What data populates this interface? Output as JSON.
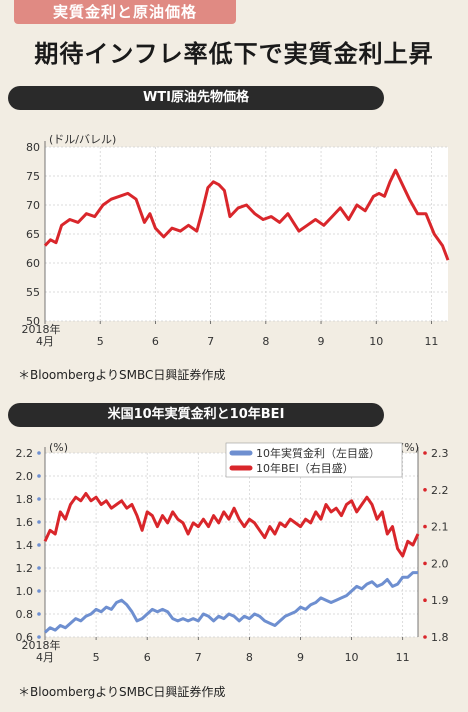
{
  "header": {
    "tag": "実質金利と原油価格",
    "title": "期待インフレ率低下で実質金利上昇"
  },
  "chart_data": [
    {
      "type": "line",
      "title": "WTI原油先物価格",
      "ylabel": "(ドル/バレル)",
      "ylim": [
        50,
        80
      ],
      "yticks": [
        50,
        55,
        60,
        65,
        70,
        75,
        80
      ],
      "x_ticks": [
        "2018年\n4月",
        "5",
        "6",
        "7",
        "8",
        "9",
        "10",
        "11"
      ],
      "x_range": [
        4.0,
        11.3
      ],
      "grid": true,
      "series": [
        {
          "color": "#d9262b",
          "x": [
            4.0,
            4.1,
            4.2,
            4.3,
            4.45,
            4.6,
            4.75,
            4.9,
            5.05,
            5.2,
            5.35,
            5.5,
            5.65,
            5.8,
            5.9,
            6.0,
            6.15,
            6.3,
            6.45,
            6.6,
            6.75,
            6.85,
            6.95,
            7.05,
            7.15,
            7.25,
            7.35,
            7.5,
            7.65,
            7.8,
            7.95,
            8.1,
            8.25,
            8.4,
            8.5,
            8.6,
            8.75,
            8.9,
            9.05,
            9.2,
            9.35,
            9.5,
            9.65,
            9.8,
            9.95,
            10.05,
            10.15,
            10.25,
            10.35,
            10.45,
            10.6,
            10.75,
            10.9,
            11.05,
            11.2,
            11.3
          ],
          "values": [
            63,
            64,
            63.5,
            66.5,
            67.5,
            67,
            68.5,
            68,
            70,
            71,
            71.5,
            72,
            71,
            67,
            68.5,
            66,
            64.5,
            66,
            65.5,
            66.5,
            65.5,
            69,
            73,
            74,
            73.5,
            72.5,
            68,
            69.5,
            70,
            68.5,
            67.5,
            68,
            67,
            68.5,
            67,
            65.5,
            66.5,
            67.5,
            66.5,
            68,
            69.5,
            67.5,
            70,
            69,
            71.5,
            72,
            71.5,
            74,
            76,
            74,
            71,
            68.5,
            68.5,
            65,
            63,
            60.5
          ]
        }
      ]
    },
    {
      "type": "line",
      "title": "米国10年実質金利と10年BEI",
      "ylabel_left": "(%)",
      "ylabel_right": "(%)",
      "ylim_left": [
        0.6,
        2.2
      ],
      "yticks_left": [
        "0.6",
        "0.8",
        "1.0",
        "1.2",
        "1.4",
        "1.6",
        "1.8",
        "2.0",
        "2.2"
      ],
      "ylim_right": [
        1.8,
        2.3
      ],
      "yticks_right": [
        "1.8",
        "1.9",
        "2.0",
        "2.1",
        "2.2",
        "2.3"
      ],
      "x_ticks": [
        "2018年\n4月",
        "5",
        "6",
        "7",
        "8",
        "9",
        "10",
        "11"
      ],
      "x_range": [
        4.0,
        11.3
      ],
      "legend": "top-right",
      "grid": true,
      "series": [
        {
          "name": "10年実質金利（左目盛）",
          "axis": "left",
          "color": "#6e8fd0",
          "x": [
            4.0,
            4.1,
            4.2,
            4.3,
            4.4,
            4.5,
            4.6,
            4.7,
            4.8,
            4.9,
            5.0,
            5.1,
            5.2,
            5.3,
            5.4,
            5.5,
            5.6,
            5.7,
            5.8,
            5.9,
            6.0,
            6.1,
            6.2,
            6.3,
            6.4,
            6.5,
            6.6,
            6.7,
            6.8,
            6.9,
            7.0,
            7.1,
            7.2,
            7.3,
            7.4,
            7.5,
            7.6,
            7.7,
            7.8,
            7.9,
            8.0,
            8.1,
            8.2,
            8.3,
            8.4,
            8.5,
            8.6,
            8.7,
            8.8,
            8.9,
            9.0,
            9.1,
            9.2,
            9.3,
            9.4,
            9.5,
            9.6,
            9.7,
            9.8,
            9.9,
            10.0,
            10.1,
            10.2,
            10.3,
            10.4,
            10.5,
            10.6,
            10.7,
            10.8,
            10.9,
            11.0,
            11.1,
            11.2,
            11.3
          ],
          "values": [
            0.64,
            0.68,
            0.66,
            0.7,
            0.68,
            0.72,
            0.76,
            0.74,
            0.78,
            0.8,
            0.84,
            0.82,
            0.86,
            0.84,
            0.9,
            0.92,
            0.88,
            0.82,
            0.74,
            0.76,
            0.8,
            0.84,
            0.82,
            0.84,
            0.82,
            0.76,
            0.74,
            0.76,
            0.74,
            0.76,
            0.74,
            0.8,
            0.78,
            0.74,
            0.78,
            0.76,
            0.8,
            0.78,
            0.74,
            0.78,
            0.76,
            0.8,
            0.78,
            0.74,
            0.72,
            0.7,
            0.74,
            0.78,
            0.8,
            0.82,
            0.86,
            0.84,
            0.88,
            0.9,
            0.94,
            0.92,
            0.9,
            0.92,
            0.94,
            0.96,
            1.0,
            1.04,
            1.02,
            1.06,
            1.08,
            1.04,
            1.06,
            1.1,
            1.04,
            1.06,
            1.12,
            1.12,
            1.16,
            1.16
          ]
        },
        {
          "name": "10年BEI（右目盛）",
          "axis": "right",
          "color": "#d9262b",
          "x": [
            4.0,
            4.1,
            4.2,
            4.3,
            4.4,
            4.5,
            4.6,
            4.7,
            4.8,
            4.9,
            5.0,
            5.1,
            5.2,
            5.3,
            5.4,
            5.5,
            5.6,
            5.7,
            5.8,
            5.9,
            6.0,
            6.1,
            6.2,
            6.3,
            6.4,
            6.5,
            6.6,
            6.7,
            6.8,
            6.9,
            7.0,
            7.1,
            7.2,
            7.3,
            7.4,
            7.5,
            7.6,
            7.7,
            7.8,
            7.9,
            8.0,
            8.1,
            8.2,
            8.3,
            8.4,
            8.5,
            8.6,
            8.7,
            8.8,
            8.9,
            9.0,
            9.1,
            9.2,
            9.3,
            9.4,
            9.5,
            9.6,
            9.7,
            9.8,
            9.9,
            10.0,
            10.1,
            10.2,
            10.3,
            10.4,
            10.5,
            10.6,
            10.7,
            10.8,
            10.9,
            11.0,
            11.1,
            11.2,
            11.3
          ],
          "values": [
            2.06,
            2.09,
            2.08,
            2.14,
            2.12,
            2.16,
            2.18,
            2.17,
            2.19,
            2.17,
            2.18,
            2.16,
            2.17,
            2.15,
            2.16,
            2.17,
            2.15,
            2.16,
            2.13,
            2.09,
            2.14,
            2.13,
            2.1,
            2.13,
            2.11,
            2.14,
            2.12,
            2.11,
            2.08,
            2.11,
            2.1,
            2.12,
            2.1,
            2.13,
            2.11,
            2.14,
            2.12,
            2.15,
            2.12,
            2.1,
            2.12,
            2.11,
            2.09,
            2.07,
            2.1,
            2.08,
            2.11,
            2.1,
            2.12,
            2.11,
            2.1,
            2.12,
            2.11,
            2.14,
            2.12,
            2.16,
            2.14,
            2.15,
            2.13,
            2.16,
            2.17,
            2.14,
            2.16,
            2.18,
            2.16,
            2.12,
            2.14,
            2.08,
            2.1,
            2.04,
            2.02,
            2.06,
            2.05,
            2.08
          ]
        }
      ]
    }
  ],
  "sources": {
    "chart1": "＊BloombergよりSMBC日興証券作成",
    "chart2": "＊BloombergよりSMBC日興証券作成"
  }
}
